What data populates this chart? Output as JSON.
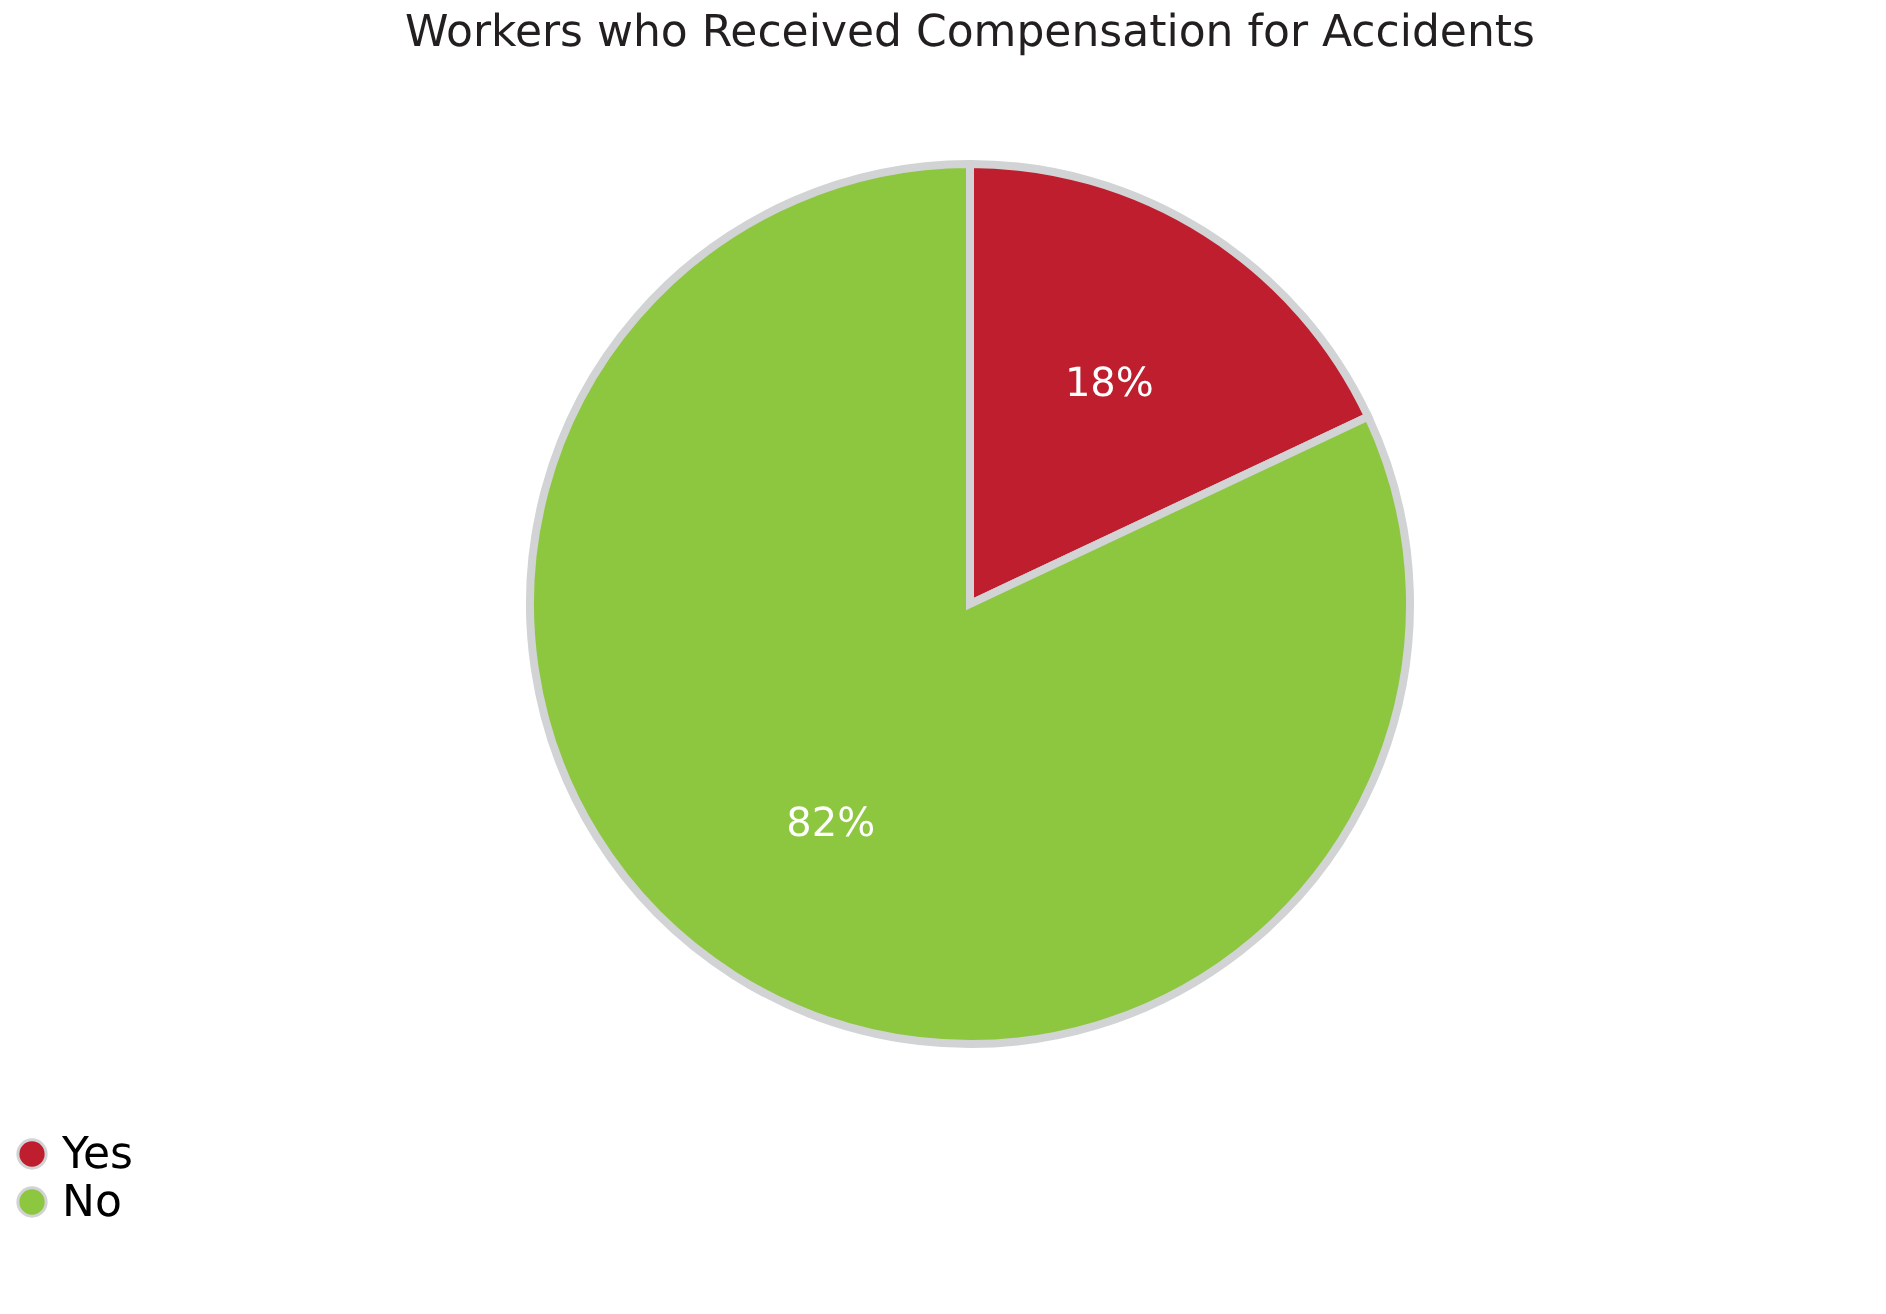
{
  "chart_data": {
    "type": "pie",
    "title": "Workers who Received Compensation for Accidents",
    "categories": [
      "Yes",
      "No"
    ],
    "values": [
      18,
      82
    ],
    "colors": [
      "#be1e2d",
      "#8dc63f"
    ],
    "value_labels": [
      "18%",
      "82%"
    ],
    "legend": "bottom left"
  }
}
